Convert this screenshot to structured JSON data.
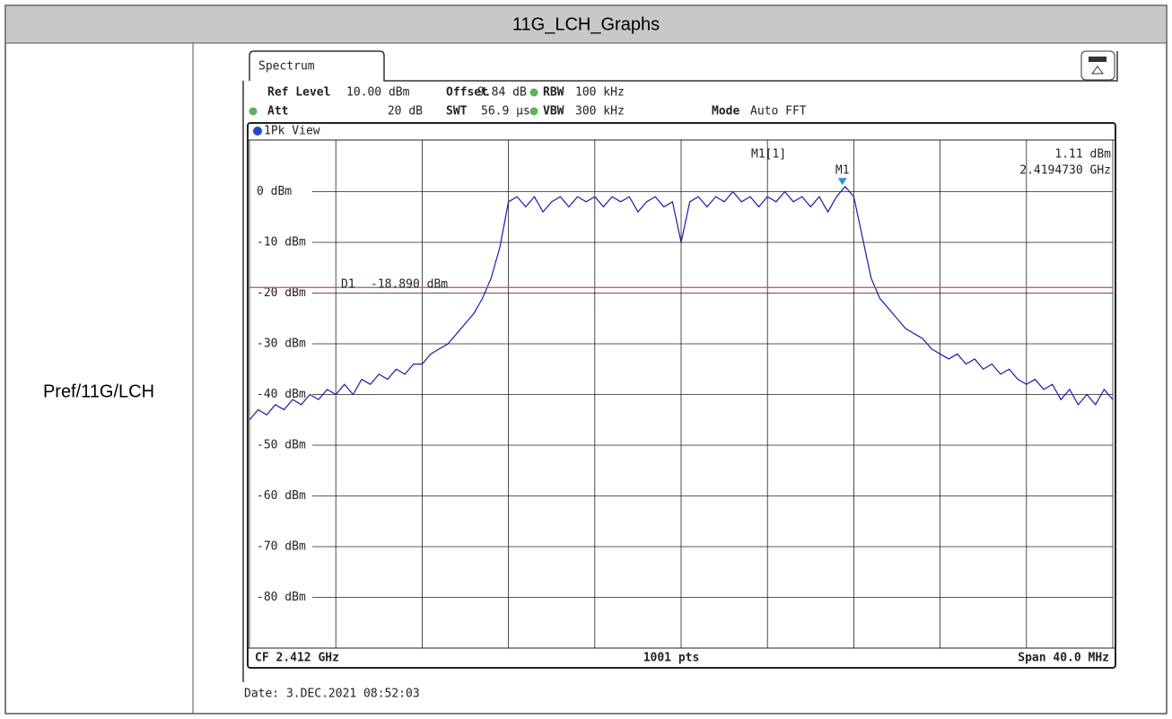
{
  "table": {
    "header": "11G_LCH_Graphs",
    "rows": [
      {
        "label": "Pref/11G/LCH"
      }
    ]
  },
  "screen": {
    "tab": "Spectrum",
    "settings": [
      {
        "label": "Ref Level",
        "value": "10.00 dBm"
      },
      {
        "label": "Offset",
        "value": "9.84 dB"
      },
      {
        "label": "RBW",
        "value": "100 kHz"
      },
      {
        "label": "Att",
        "value": "20 dB"
      },
      {
        "label": "SWT",
        "value": "56.9 µs"
      },
      {
        "label": "VBW",
        "value": "300 kHz"
      },
      {
        "label": "Mode",
        "value": "Auto FFT"
      }
    ],
    "view": "1Pk View",
    "footer": {
      "center": "CF 2.412 GHz",
      "points": "1001 pts",
      "span": "Span 40.0 MHz"
    },
    "date": "Date: 3.DEC.2021  08:52:03"
  },
  "chart_data": {
    "type": "line",
    "xlim": [
      2.392,
      2.432
    ],
    "xticks": [
      2.392,
      2.396,
      2.4,
      2.404,
      2.408,
      2.412,
      2.416,
      2.42,
      2.424,
      2.428,
      2.432
    ],
    "ylim": [
      -90,
      10
    ],
    "yticks": [
      {
        "value": 0,
        "label": "0 dBm"
      },
      {
        "value": -10,
        "label": "-10 dBm"
      },
      {
        "value": -20,
        "label": "-20 dBm"
      },
      {
        "value": -30,
        "label": "-30 dBm"
      },
      {
        "value": -40,
        "label": "-40 dBm"
      },
      {
        "value": -50,
        "label": "-50 dBm"
      },
      {
        "value": -60,
        "label": "-60 dBm"
      },
      {
        "value": -70,
        "label": "-70 dBm"
      },
      {
        "value": -80,
        "label": "-80 dBm"
      }
    ],
    "grid": true,
    "x": [
      2.392,
      2.3924,
      2.3928,
      2.3932,
      2.3936,
      2.394,
      2.3944,
      2.3948,
      2.3952,
      2.3956,
      2.396,
      2.3964,
      2.3968,
      2.3972,
      2.3976,
      2.398,
      2.3984,
      2.3988,
      2.3992,
      2.3996,
      2.4,
      2.4004,
      2.4008,
      2.4012,
      2.4016,
      2.402,
      2.4024,
      2.4028,
      2.4032,
      2.4036,
      2.404,
      2.4044,
      2.4048,
      2.4052,
      2.4056,
      2.406,
      2.4064,
      2.4068,
      2.4072,
      2.4076,
      2.408,
      2.4084,
      2.4088,
      2.4092,
      2.4096,
      2.41,
      2.4104,
      2.4108,
      2.4112,
      2.4116,
      2.412,
      2.4124,
      2.4128,
      2.4132,
      2.4136,
      2.414,
      2.4144,
      2.4148,
      2.4152,
      2.4156,
      2.416,
      2.4164,
      2.4168,
      2.4172,
      2.4176,
      2.418,
      2.4184,
      2.4188,
      2.4192,
      2.4196,
      2.42,
      2.4204,
      2.4208,
      2.4212,
      2.4216,
      2.422,
      2.4224,
      2.4228,
      2.4232,
      2.4236,
      2.424,
      2.4244,
      2.4248,
      2.4252,
      2.4256,
      2.426,
      2.4264,
      2.4268,
      2.4272,
      2.4276,
      2.428,
      2.4284,
      2.4288,
      2.4292,
      2.4296,
      2.43,
      2.4304,
      2.4308,
      2.4312,
      2.4316,
      2.432
    ],
    "series": [
      {
        "color": "#1c1ca8",
        "values": [
          -45,
          -43,
          -44,
          -42,
          -43,
          -41,
          -42,
          -40,
          -41,
          -39,
          -40,
          -38,
          -40,
          -37,
          -38,
          -36,
          -37,
          -35,
          -36,
          -34,
          -34,
          -32,
          -31,
          -30,
          -28,
          -26,
          -24,
          -21,
          -17,
          -11,
          -2,
          -1,
          -3,
          -1,
          -4,
          -2,
          -1,
          -3,
          -1,
          -2,
          -1,
          -3,
          -1,
          -2,
          -1,
          -4,
          -2,
          -1,
          -3,
          -2,
          -10,
          -2,
          -1,
          -3,
          -1,
          -2,
          0,
          -2,
          -1,
          -3,
          -1,
          -2,
          0,
          -2,
          -1,
          -3,
          -1,
          -4,
          -1,
          1,
          -1,
          -9,
          -17,
          -21,
          -23,
          -25,
          -27,
          -28,
          -29,
          -31,
          -32,
          -33,
          -32,
          -34,
          -33,
          -35,
          -34,
          -36,
          -35,
          -37,
          -38,
          -37,
          -39,
          -38,
          -41,
          -39,
          -42,
          -40,
          -42,
          -39,
          -41
        ]
      }
    ],
    "display_line": {
      "name": "D1",
      "value": -18.89,
      "value_label": "-18.890 dBm",
      "color": "#c0504d"
    },
    "marker": {
      "name": "M1",
      "trace_label": "M1[1]",
      "x": 2.419473,
      "y": 1.11,
      "x_label": "2.4194730 GHz",
      "y_label": "1.11 dBm",
      "color": "#2f93c8"
    }
  }
}
